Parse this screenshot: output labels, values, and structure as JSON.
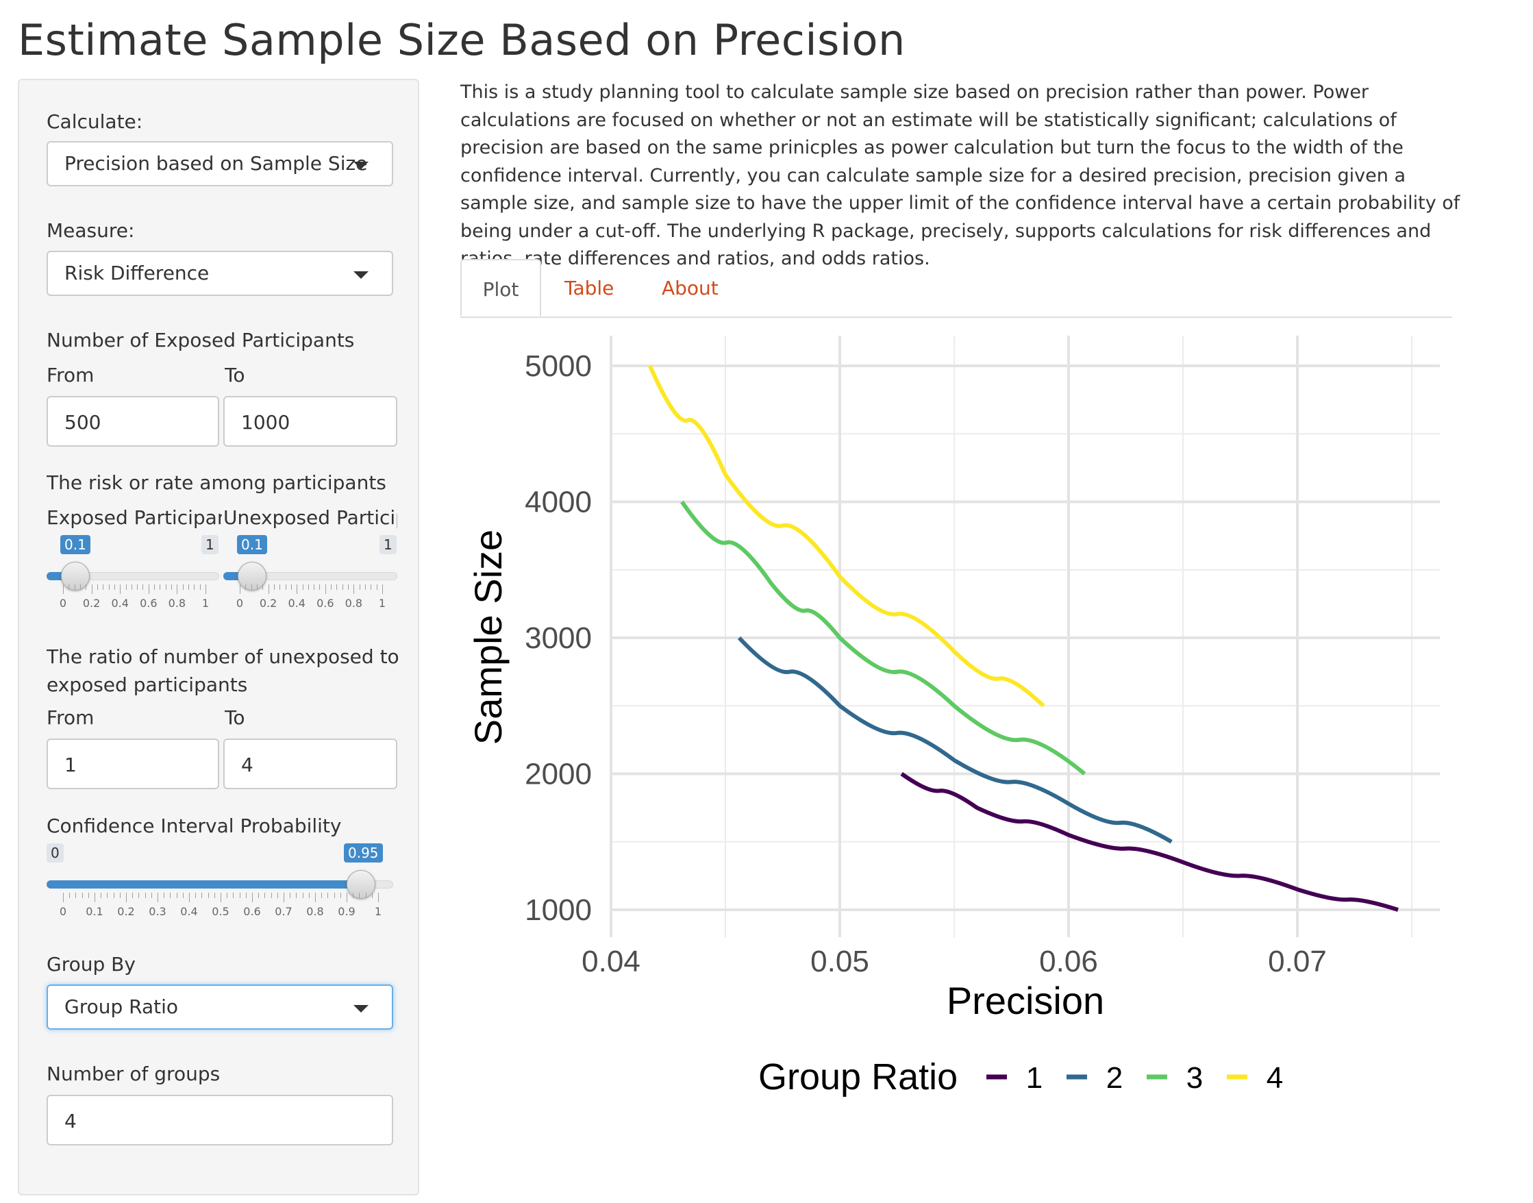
{
  "page": {
    "title": "Estimate Sample Size Based on Precision"
  },
  "sidebar": {
    "calculate": {
      "label": "Calculate:",
      "value": "Precision based on Sample Size"
    },
    "measure": {
      "label": "Measure:",
      "value": "Risk Difference"
    },
    "exposed_participants": {
      "label": "Number of Exposed Participants",
      "from_label": "From",
      "to_label": "To",
      "from_value": "500",
      "to_value": "1000"
    },
    "risk": {
      "label": "The risk or rate among participants",
      "exposed_label": "Exposed Participant",
      "unexposed_label": "Unexposed Participa",
      "exposed_value": "0.1",
      "exposed_max": "1",
      "exposed_level": 0.1,
      "unexposed_value": "0.1",
      "unexposed_max": "1",
      "unexposed_level": 0.1,
      "tick_labels": [
        "0",
        "0.2",
        "0.4",
        "0.6",
        "0.8",
        "1"
      ]
    },
    "ratio": {
      "label": "The ratio of number of unexposed to exposed participants",
      "from_label": "From",
      "to_label": "To",
      "from_value": "1",
      "to_value": "4"
    },
    "ci": {
      "label": "Confidence Interval Probability",
      "min": "0",
      "value": "0.95",
      "level": 0.95,
      "tick_labels": [
        "0",
        "0.1",
        "0.2",
        "0.3",
        "0.4",
        "0.5",
        "0.6",
        "0.7",
        "0.8",
        "0.9",
        "1"
      ]
    },
    "group_by": {
      "label": "Group By",
      "value": "Group Ratio"
    },
    "num_groups": {
      "label": "Number of groups",
      "value": "4"
    }
  },
  "main": {
    "description": "This is a study planning tool to calculate sample size based on precision rather than power. Power calculations are focused on whether or not an estimate will be statistically significant; calculations of precision are based on the same prinicples as power calculation but turn the focus to the width of the confidence interval. Currently, you can calculate sample size for a desired precision, precision given a sample size, and sample size to have the upper limit of the confidence interval have a certain probability of being under a cut-off. The underlying R package, precisely, supports calculations for risk differences and ratios, rate differences and ratios, and odds ratios.",
    "tabs": [
      {
        "label": "Plot",
        "active": true
      },
      {
        "label": "Table",
        "active": false
      },
      {
        "label": "About",
        "active": false
      }
    ],
    "tab_link_color": "#d24b1a"
  },
  "chart_data": {
    "type": "line",
    "xlabel": "Precision",
    "ylabel": "Sample Size",
    "xlim": [
      0.04,
      0.076
    ],
    "ylim": [
      1000,
      5000
    ],
    "x_ticks": [
      "0.04",
      "0.05",
      "0.06",
      "0.07"
    ],
    "y_ticks": [
      "1000",
      "2000",
      "3000",
      "4000",
      "5000"
    ],
    "grid": true,
    "legend": {
      "title": "Group Ratio",
      "position": "bottom"
    },
    "series": [
      {
        "name": "1",
        "color": "#440154",
        "points": [
          [
            0.0527,
            2000
          ],
          [
            0.056,
            1750
          ],
          [
            0.06,
            1550
          ],
          [
            0.065,
            1350
          ],
          [
            0.07,
            1150
          ],
          [
            0.0744,
            1000
          ]
        ]
      },
      {
        "name": "2",
        "color": "#31688e",
        "points": [
          [
            0.0456,
            3000
          ],
          [
            0.05,
            2500
          ],
          [
            0.055,
            2100
          ],
          [
            0.06,
            1780
          ],
          [
            0.0645,
            1500
          ]
        ]
      },
      {
        "name": "3",
        "color": "#5ec962",
        "points": [
          [
            0.0431,
            4000
          ],
          [
            0.047,
            3400
          ],
          [
            0.05,
            3000
          ],
          [
            0.055,
            2500
          ],
          [
            0.0607,
            2000
          ]
        ]
      },
      {
        "name": "4",
        "color": "#fde725",
        "points": [
          [
            0.0417,
            5000
          ],
          [
            0.045,
            4200
          ],
          [
            0.05,
            3450
          ],
          [
            0.055,
            2900
          ],
          [
            0.0589,
            2500
          ]
        ]
      }
    ]
  }
}
